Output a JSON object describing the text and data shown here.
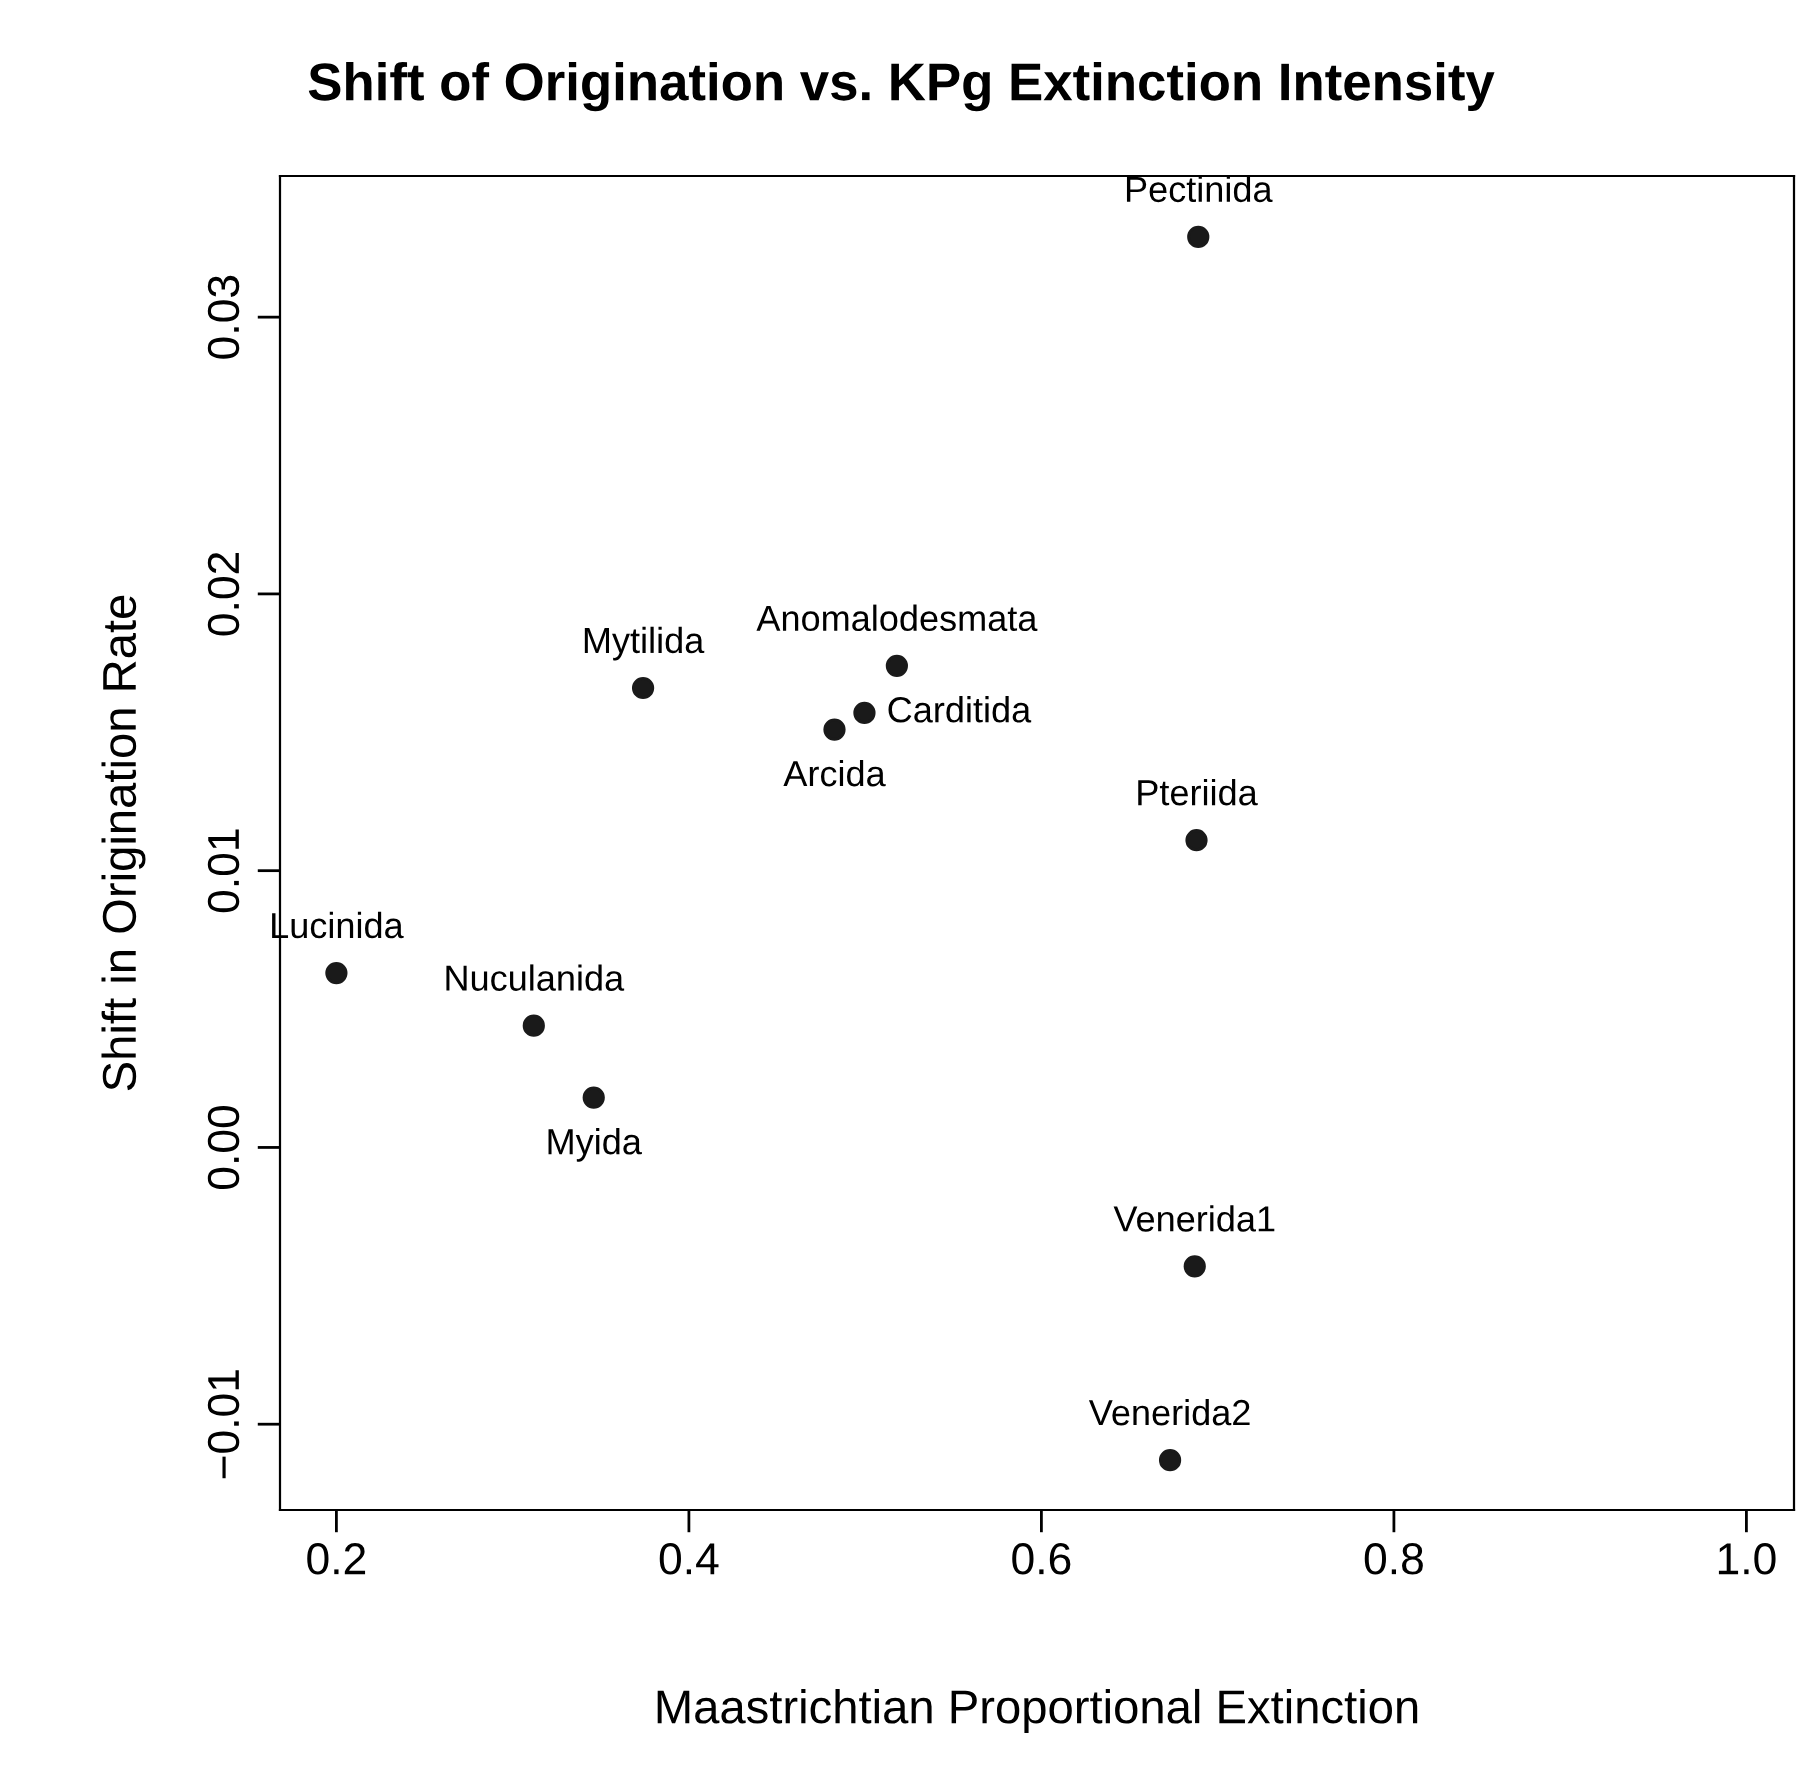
{
  "chart_data": {
    "type": "scatter",
    "title": "Shift of Origination vs. KPg Extinction Intensity",
    "xlabel": "Maastrichtian Proportional Extinction",
    "ylabel": "Shift in Origination Rate",
    "x": [
      0.689,
      0.374,
      0.518,
      0.4996,
      0.4826,
      0.688,
      0.2,
      0.312,
      0.346,
      0.687,
      0.673
    ],
    "values": [
      0.0329,
      0.0166,
      0.0174,
      0.0157,
      0.0151,
      0.0111,
      0.0063,
      0.0044,
      0.0018,
      -0.0043,
      -0.0113
    ],
    "color": "#1a1a1a",
    "marker": "circle",
    "grid": false,
    "legend": false,
    "xlim": [
      0.168,
      1.027
    ],
    "ylim": [
      -0.0131,
      0.0351
    ],
    "xticks": [
      {
        "value": 0.2,
        "label": "0.2"
      },
      {
        "value": 0.4,
        "label": "0.4"
      },
      {
        "value": 0.6,
        "label": "0.6"
      },
      {
        "value": 0.8,
        "label": "0.8"
      },
      {
        "value": 1.0,
        "label": "1.0"
      }
    ],
    "yticks": [
      {
        "value": -0.01,
        "label": "−0.01"
      },
      {
        "value": 0.0,
        "label": "0.00"
      },
      {
        "value": 0.01,
        "label": "0.01"
      },
      {
        "value": 0.02,
        "label": "0.02"
      },
      {
        "value": 0.03,
        "label": "0.03"
      }
    ],
    "annotations": [
      {
        "text": "Pectinida",
        "x": 0.689,
        "y": 0.0329
      },
      {
        "text": "Mytilida",
        "x": 0.374,
        "y": 0.0166
      },
      {
        "text": "Anomalodesmata",
        "x": 0.518,
        "y": 0.0174
      },
      {
        "text": "Carditida",
        "x": 0.4996,
        "y": 0.0157
      },
      {
        "text": "Arcida",
        "x": 0.4826,
        "y": 0.0151
      },
      {
        "text": "Pteriida",
        "x": 0.688,
        "y": 0.0111
      },
      {
        "text": "Lucinida",
        "x": 0.2,
        "y": 0.0063
      },
      {
        "text": "Nuculanida",
        "x": 0.312,
        "y": 0.0044
      },
      {
        "text": "Myida",
        "x": 0.346,
        "y": 0.0018
      },
      {
        "text": "Venerida1",
        "x": 0.687,
        "y": -0.0043
      },
      {
        "text": "Venerida2",
        "x": 0.673,
        "y": -0.0113
      }
    ]
  }
}
